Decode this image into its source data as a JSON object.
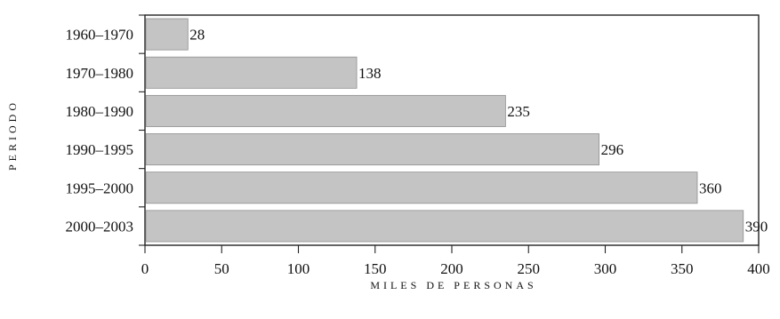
{
  "chart_data": {
    "type": "bar",
    "orientation": "horizontal",
    "title": "",
    "xlabel": "MILES DE PERSONAS",
    "ylabel": "PERIODO",
    "categories": [
      "1960–1970",
      "1970–1980",
      "1980–1990",
      "1990–1995",
      "1995–2000",
      "2000–2003"
    ],
    "values": [
      28,
      138,
      235,
      296,
      360,
      390
    ],
    "data_labels": [
      "28",
      "138",
      "235",
      "296",
      "360",
      "390"
    ],
    "x_ticks": [
      0,
      50,
      100,
      150,
      200,
      250,
      300,
      350,
      400
    ],
    "x_tick_labels": [
      "0",
      "50",
      "100",
      "150",
      "200",
      "250",
      "300",
      "350",
      "400"
    ],
    "xlim": [
      0,
      400
    ],
    "grid": false,
    "legend": "none",
    "colors": {
      "bar_fill": "#c4c4c4",
      "bar_stroke": "#8f8f8f",
      "axis": "#222222",
      "text": "#111111"
    }
  }
}
